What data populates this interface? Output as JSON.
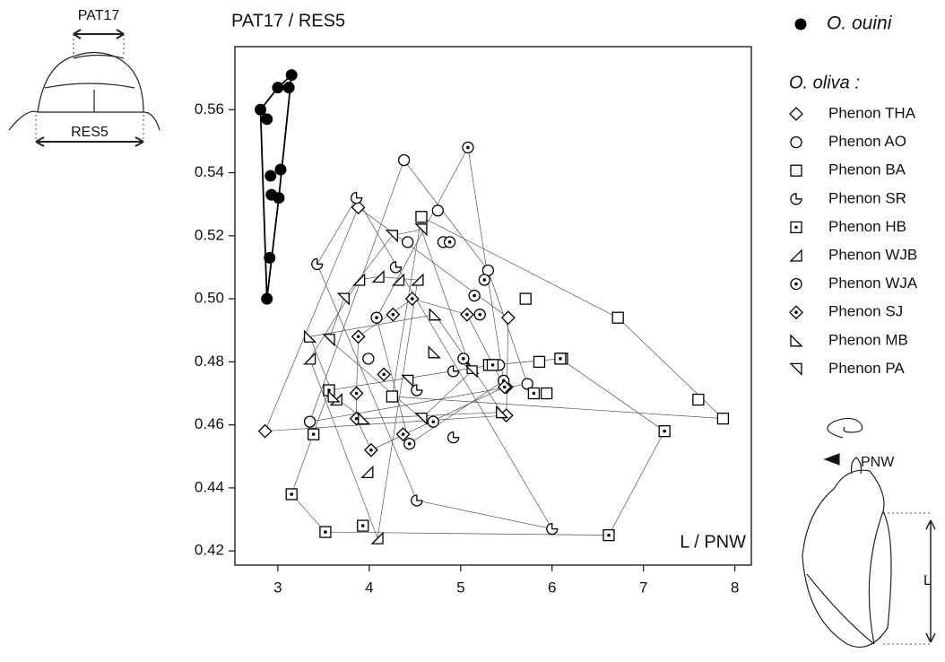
{
  "chart_data": {
    "type": "scatter",
    "ylabel": "PAT17 / RES5",
    "xlabel": "L / PNW",
    "legend_title": "O. oliva :",
    "annotations": [
      "PAT17",
      "RES5",
      "PNW",
      "L"
    ],
    "xlim": [
      2.53,
      8.18
    ],
    "ylim": [
      0.4155,
      0.58
    ],
    "xticks": [
      3,
      4,
      5,
      6,
      7,
      8
    ],
    "yticks": [
      0.42,
      0.44,
      0.46,
      0.48,
      {
        "value": 0.5,
        "label": "0.50"
      },
      0.52,
      0.54,
      0.56
    ],
    "hull": true,
    "series": [
      {
        "name": "O. ouini",
        "color": "#000000",
        "marker": "filled-circle",
        "x": [
          2.81,
          2.88,
          3.0,
          3.12,
          3.15,
          2.92,
          3.03,
          2.93,
          3.01,
          2.91,
          2.88
        ],
        "values": [
          0.56,
          0.557,
          0.567,
          0.567,
          0.571,
          0.539,
          0.541,
          0.533,
          0.532,
          0.513,
          0.5
        ]
      },
      {
        "name": "Phenon  THA",
        "color": "#000000",
        "marker": "diamond",
        "x": [
          2.86,
          3.88,
          5.52,
          5.5,
          5.5
        ],
        "values": [
          0.458,
          0.529,
          0.494,
          0.472,
          0.463
        ]
      },
      {
        "name": "Phenon AO",
        "color": "#000000",
        "marker": "circle",
        "x": [
          4.38,
          3.35,
          4.75,
          4.42,
          5.73,
          3.99,
          5.3,
          5.42,
          4.81
        ],
        "values": [
          0.544,
          0.461,
          0.528,
          0.518,
          0.473,
          0.481,
          0.509,
          0.479,
          0.518
        ]
      },
      {
        "name": "Phenon BA",
        "color": "#000000",
        "marker": "square",
        "x": [
          4.57,
          6.72,
          7.6,
          7.87,
          5.71,
          5.86,
          6.11,
          5.94,
          5.31,
          4.25
        ],
        "values": [
          0.526,
          0.494,
          0.468,
          0.462,
          0.5,
          0.48,
          0.481,
          0.47,
          0.479,
          0.469
        ]
      },
      {
        "name": "Phenon SR",
        "color": "#000000",
        "marker": "pie",
        "x": [
          3.86,
          3.43,
          4.29,
          4.92,
          4.52,
          4.92,
          4.52,
          6.0
        ],
        "values": [
          0.532,
          0.511,
          0.51,
          0.477,
          0.471,
          0.456,
          0.436,
          0.427
        ]
      },
      {
        "name": "Phenon HB",
        "color": "#000000",
        "marker": "square-dot",
        "x": [
          3.56,
          3.39,
          3.15,
          3.52,
          3.93,
          6.62,
          7.23,
          6.09,
          5.8,
          5.35
        ],
        "values": [
          0.471,
          0.457,
          0.438,
          0.426,
          0.428,
          0.425,
          0.458,
          0.481,
          0.47,
          0.479
        ]
      },
      {
        "name": "Phenon WJB",
        "color": "#000000",
        "marker": "tri-br",
        "x": [
          3.35,
          3.64,
          3.98,
          4.09,
          3.89,
          4.1,
          4.32,
          4.53
        ],
        "values": [
          0.481,
          0.468,
          0.445,
          0.424,
          0.506,
          0.507,
          0.506,
          0.506
        ]
      },
      {
        "name": "Phenon WJA",
        "color": "#000000",
        "marker": "circle-dot",
        "x": [
          5.08,
          4.88,
          5.26,
          5.15,
          5.03,
          4.7,
          4.44,
          4.08,
          5.21,
          5.47
        ],
        "values": [
          0.548,
          0.518,
          0.506,
          0.501,
          0.481,
          0.461,
          0.454,
          0.494,
          0.495,
          0.474
        ]
      },
      {
        "name": "Phenon SJ",
        "color": "#000000",
        "marker": "diamond-dot",
        "x": [
          3.88,
          3.86,
          4.02,
          4.37,
          4.16,
          4.47,
          5.07,
          5.48,
          4.26,
          3.86
        ],
        "values": [
          0.488,
          0.47,
          0.452,
          0.457,
          0.476,
          0.5,
          0.495,
          0.472,
          0.495,
          0.462
        ]
      },
      {
        "name": "Phenon MB",
        "color": "#000000",
        "marker": "tri-bl",
        "x": [
          3.35,
          4.72,
          4.71,
          5.45,
          3.94,
          3.61,
          5.13
        ],
        "values": [
          0.488,
          0.495,
          0.483,
          0.464,
          0.462,
          0.469,
          0.478
        ]
      },
      {
        "name": "Phenon PA",
        "color": "#000000",
        "marker": "tri-tr",
        "x": [
          3.56,
          3.72,
          4.25,
          4.57,
          4.42,
          5.12,
          4.57
        ],
        "values": [
          0.487,
          0.5,
          0.52,
          0.522,
          0.474,
          0.477,
          0.462
        ]
      }
    ]
  }
}
